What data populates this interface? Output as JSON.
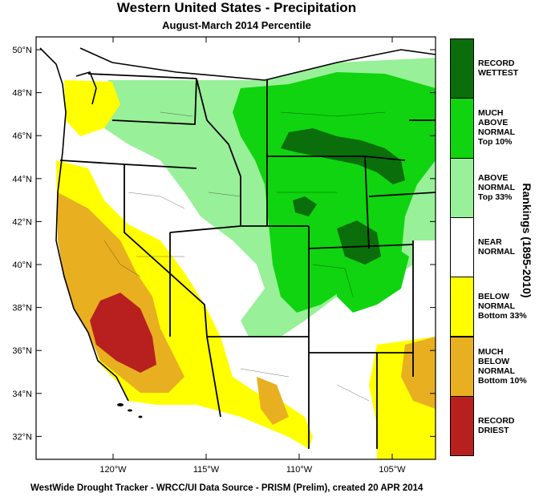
{
  "title": "Western United States - Precipitation",
  "subtitle": "August-March 2014 Percentile",
  "footer": "WestWide Drought Tracker - WRCC/UI  Data Source - PRISM (Prelim), created 20 APR 2014",
  "legend_title": "Rankings (1895-2010)",
  "legend": [
    {
      "label": "RECORD\nWETTEST",
      "color": "#0a6e0a"
    },
    {
      "label": "MUCH\nABOVE\nNORMAL\nTop 10%",
      "color": "#0fd40f"
    },
    {
      "label": "ABOVE\nNORMAL\nTop 33%",
      "color": "#98f098"
    },
    {
      "label": "NEAR\nNORMAL",
      "color": "#ffffff"
    },
    {
      "label": "BELOW\nNORMAL\nBottom 33%",
      "color": "#ffff00"
    },
    {
      "label": "MUCH\nBELOW\nNORMAL\nBottom 10%",
      "color": "#e8b020"
    },
    {
      "label": "RECORD\nDRIEST",
      "color": "#b82020"
    }
  ],
  "lat_labels": [
    "50°N",
    "48°N",
    "46°N",
    "44°N",
    "42°N",
    "40°N",
    "38°N",
    "36°N",
    "34°N",
    "32°N"
  ],
  "lon_labels": [
    "120°W",
    "115°W",
    "110°W",
    "105°W"
  ]
}
